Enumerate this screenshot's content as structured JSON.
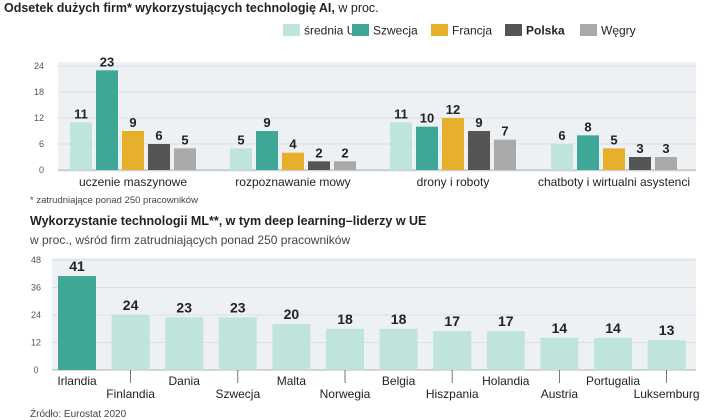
{
  "colors": {
    "srednia_ue": "#bfe3dd",
    "szwecja": "#3fa796",
    "francja": "#e6b02d",
    "polska": "#555555",
    "wegry": "#a9a9a9",
    "panel_bg": "#eef1f4",
    "axis_text": "#555555"
  },
  "chart1": {
    "title_bold": "Odsetek dużych firm* wykorzystujących technologię AI,",
    "title_rest": " w proc.",
    "footnote": "* zatrudniające ponad 250 pracowników"
  },
  "chart2": {
    "title": "Wykorzystanie technologii ML**, w tym deep learning–liderzy w UE",
    "subtitle": "w proc., wśród firm zatrudniających ponad 250 pracowników"
  },
  "source": "Źródło: Eurostat 2020",
  "chart_data": [
    {
      "type": "bar",
      "categories": [
        "uczenie maszynowe",
        "rozpoznawanie mowy",
        "drony i roboty",
        "chatboty i wirtualni asystenci"
      ],
      "series": [
        {
          "name": "średnia UE",
          "values": [
            11,
            5,
            11,
            6
          ]
        },
        {
          "name": "Szwecja",
          "values": [
            23,
            9,
            10,
            8
          ]
        },
        {
          "name": "Francja",
          "values": [
            9,
            4,
            12,
            5
          ]
        },
        {
          "name": "Polska",
          "values": [
            6,
            2,
            9,
            3
          ]
        },
        {
          "name": "Węgry",
          "values": [
            5,
            2,
            7,
            3
          ]
        }
      ],
      "ylim": [
        0,
        24
      ],
      "yticks": [
        0,
        6,
        12,
        18,
        24
      ],
      "legend": "top-right",
      "grid": true
    },
    {
      "type": "bar",
      "categories": [
        "Irlandia",
        "Finlandia",
        "Dania",
        "Szwecja",
        "Malta",
        "Norwegia",
        "Belgia",
        "Hiszpania",
        "Holandia",
        "Austria",
        "Portugalia",
        "Luksemburg"
      ],
      "values": [
        41,
        24,
        23,
        23,
        20,
        18,
        18,
        17,
        17,
        14,
        14,
        13
      ],
      "ylim": [
        0,
        48
      ],
      "yticks": [
        0,
        12,
        24,
        36,
        48
      ],
      "grid": true
    }
  ]
}
